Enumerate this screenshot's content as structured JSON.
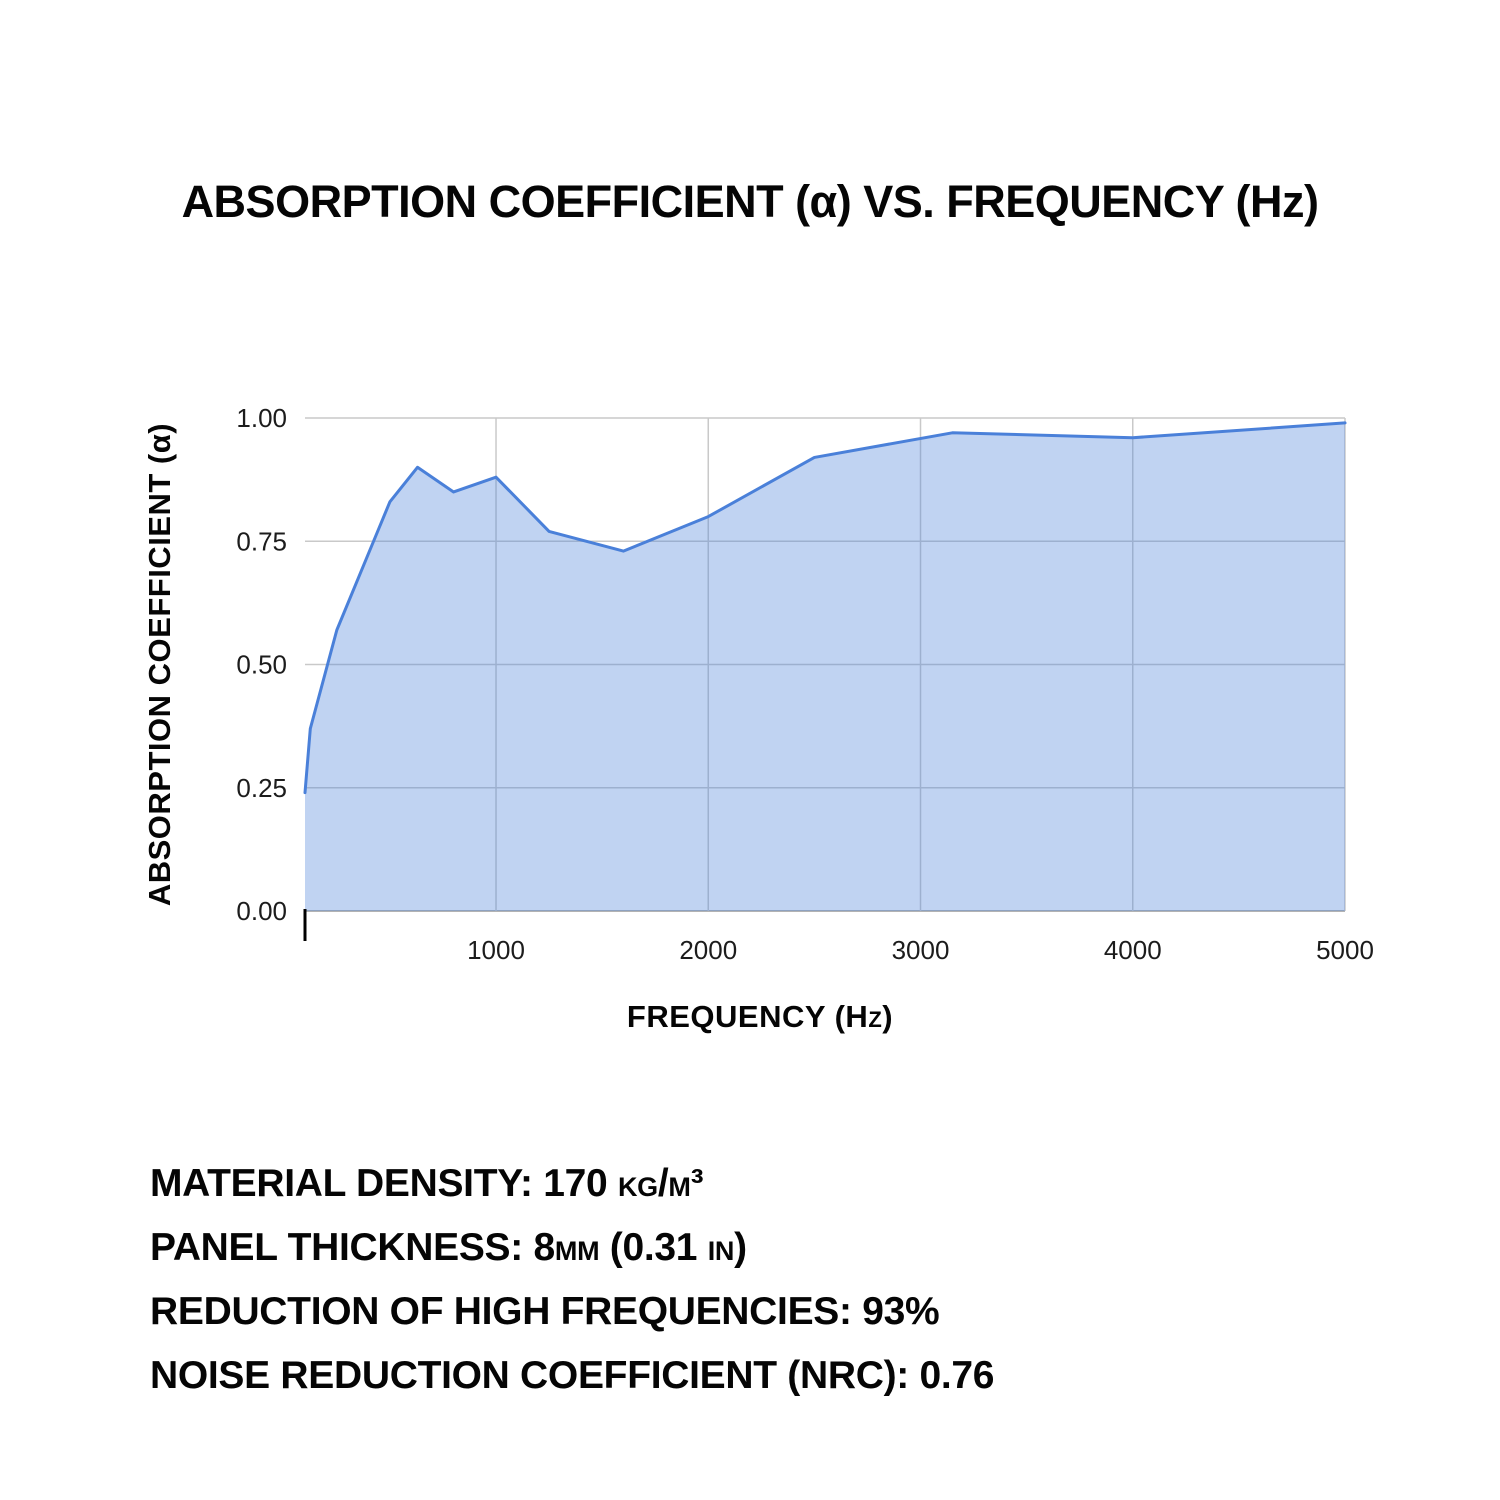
{
  "chart_data": {
    "type": "area",
    "title": "ABSORPTION COEFFICIENT (α) VS. FREQUENCY (Hz)",
    "xlabel": "FREQUENCY (Hz)",
    "ylabel": "ABSORPTION COEFFICIENT (α)",
    "x": [
      100,
      125,
      250,
      500,
      630,
      800,
      1000,
      1250,
      1600,
      2000,
      2500,
      3150,
      4000,
      5000
    ],
    "y": [
      0.24,
      0.37,
      0.57,
      0.83,
      0.9,
      0.85,
      0.88,
      0.77,
      0.73,
      0.8,
      0.92,
      0.97,
      0.96,
      0.99
    ],
    "xlim": [
      100,
      5000
    ],
    "ylim": [
      0,
      1
    ],
    "x_ticks": [
      1000,
      2000,
      3000,
      4000,
      5000
    ],
    "x_tick_labels": [
      "1000",
      "2000",
      "3000",
      "4000",
      "5000"
    ],
    "y_ticks": [
      0,
      0.25,
      0.5,
      0.75,
      1
    ],
    "y_tick_labels": [
      "0.00",
      "0.25",
      "0.50",
      "0.75",
      "1.00"
    ],
    "grid": true,
    "legend": false,
    "colors": {
      "line": "#4a80d9",
      "fill": "#4a80d9",
      "fill_opacity": "0.35",
      "grid": "#c9c9c9",
      "baseline": "#9a9a9a",
      "axis_tick_mark": "#000000",
      "tick_text": "#1c1c1c",
      "text": "#050505",
      "background": "#ffffff"
    }
  },
  "footer": {
    "lines": [
      "MATERIAL DENSITY: 170 kg/m³",
      "PANEL THICKNESS: 8mm (0.31 in)",
      "REDUCTION OF HIGH FREQUENCIES: 93%",
      "NOISE REDUCTION COEFFICIENT (NRC): 0.76"
    ]
  }
}
